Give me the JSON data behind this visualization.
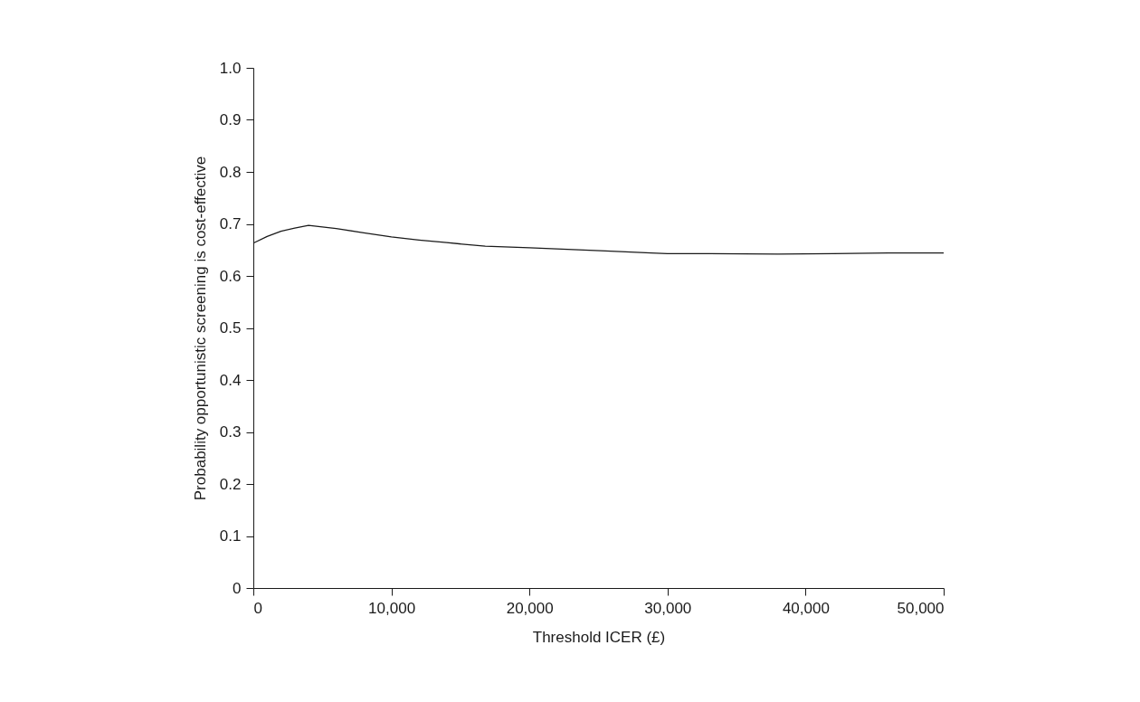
{
  "chart_data": {
    "type": "line",
    "xlabel": "Threshold ICER (£)",
    "ylabel": "Probability opportunistic screening is cost-effective",
    "x": [
      0,
      1000,
      2000,
      3000,
      4000,
      6000,
      8000,
      10000,
      12000,
      14000,
      16800,
      20000,
      25500,
      28800,
      30000,
      33000,
      38000,
      42000,
      46000,
      50000
    ],
    "series": [
      {
        "color": "#1a1a1a",
        "values": [
          0.663,
          0.676,
          0.686,
          0.692,
          0.697,
          0.691,
          0.683,
          0.675,
          0.669,
          0.664,
          0.657,
          0.654,
          0.648,
          0.644,
          0.643,
          0.643,
          0.642,
          0.643,
          0.644,
          0.644
        ]
      }
    ],
    "xlim": [
      0,
      50000
    ],
    "xticks": [
      {
        "value": 0,
        "label": "0"
      },
      {
        "value": 10000,
        "label": "10,000"
      },
      {
        "value": 20000,
        "label": "20,000"
      },
      {
        "value": 30000,
        "label": "30,000"
      },
      {
        "value": 40000,
        "label": "40,000"
      },
      {
        "value": 50000,
        "label": "50,000"
      }
    ],
    "ylim": [
      0,
      1.0
    ],
    "yticks": [
      {
        "value": 0,
        "label": "0"
      },
      {
        "value": 0.1,
        "label": "0.1"
      },
      {
        "value": 0.2,
        "label": "0.2"
      },
      {
        "value": 0.3,
        "label": "0.3"
      },
      {
        "value": 0.4,
        "label": "0.4"
      },
      {
        "value": 0.5,
        "label": "0.5"
      },
      {
        "value": 0.6,
        "label": "0.6"
      },
      {
        "value": 0.7,
        "label": "0.7"
      },
      {
        "value": 0.8,
        "label": "0.8"
      },
      {
        "value": 0.9,
        "label": "0.9"
      },
      {
        "value": 1.0,
        "label": "1.0"
      }
    ],
    "grid": false,
    "marker": "none",
    "line_style": "solid"
  }
}
